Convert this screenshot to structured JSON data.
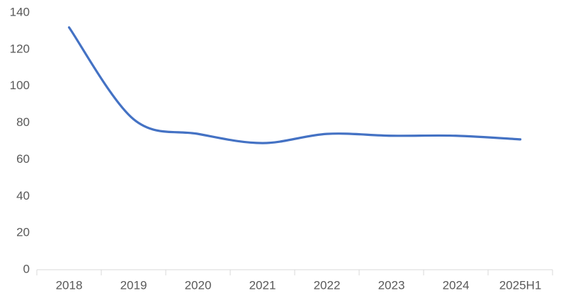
{
  "chart_data": {
    "type": "line",
    "categories": [
      "2018",
      "2019",
      "2020",
      "2021",
      "2022",
      "2023",
      "2024",
      "2025H1"
    ],
    "values": [
      132,
      82,
      74,
      69,
      74,
      73,
      73,
      71
    ],
    "color": "#4472c4",
    "smooth": true,
    "grid": false,
    "ylim": [
      0,
      140
    ],
    "yticks": [
      0,
      20,
      40,
      60,
      80,
      100,
      120,
      140
    ]
  }
}
